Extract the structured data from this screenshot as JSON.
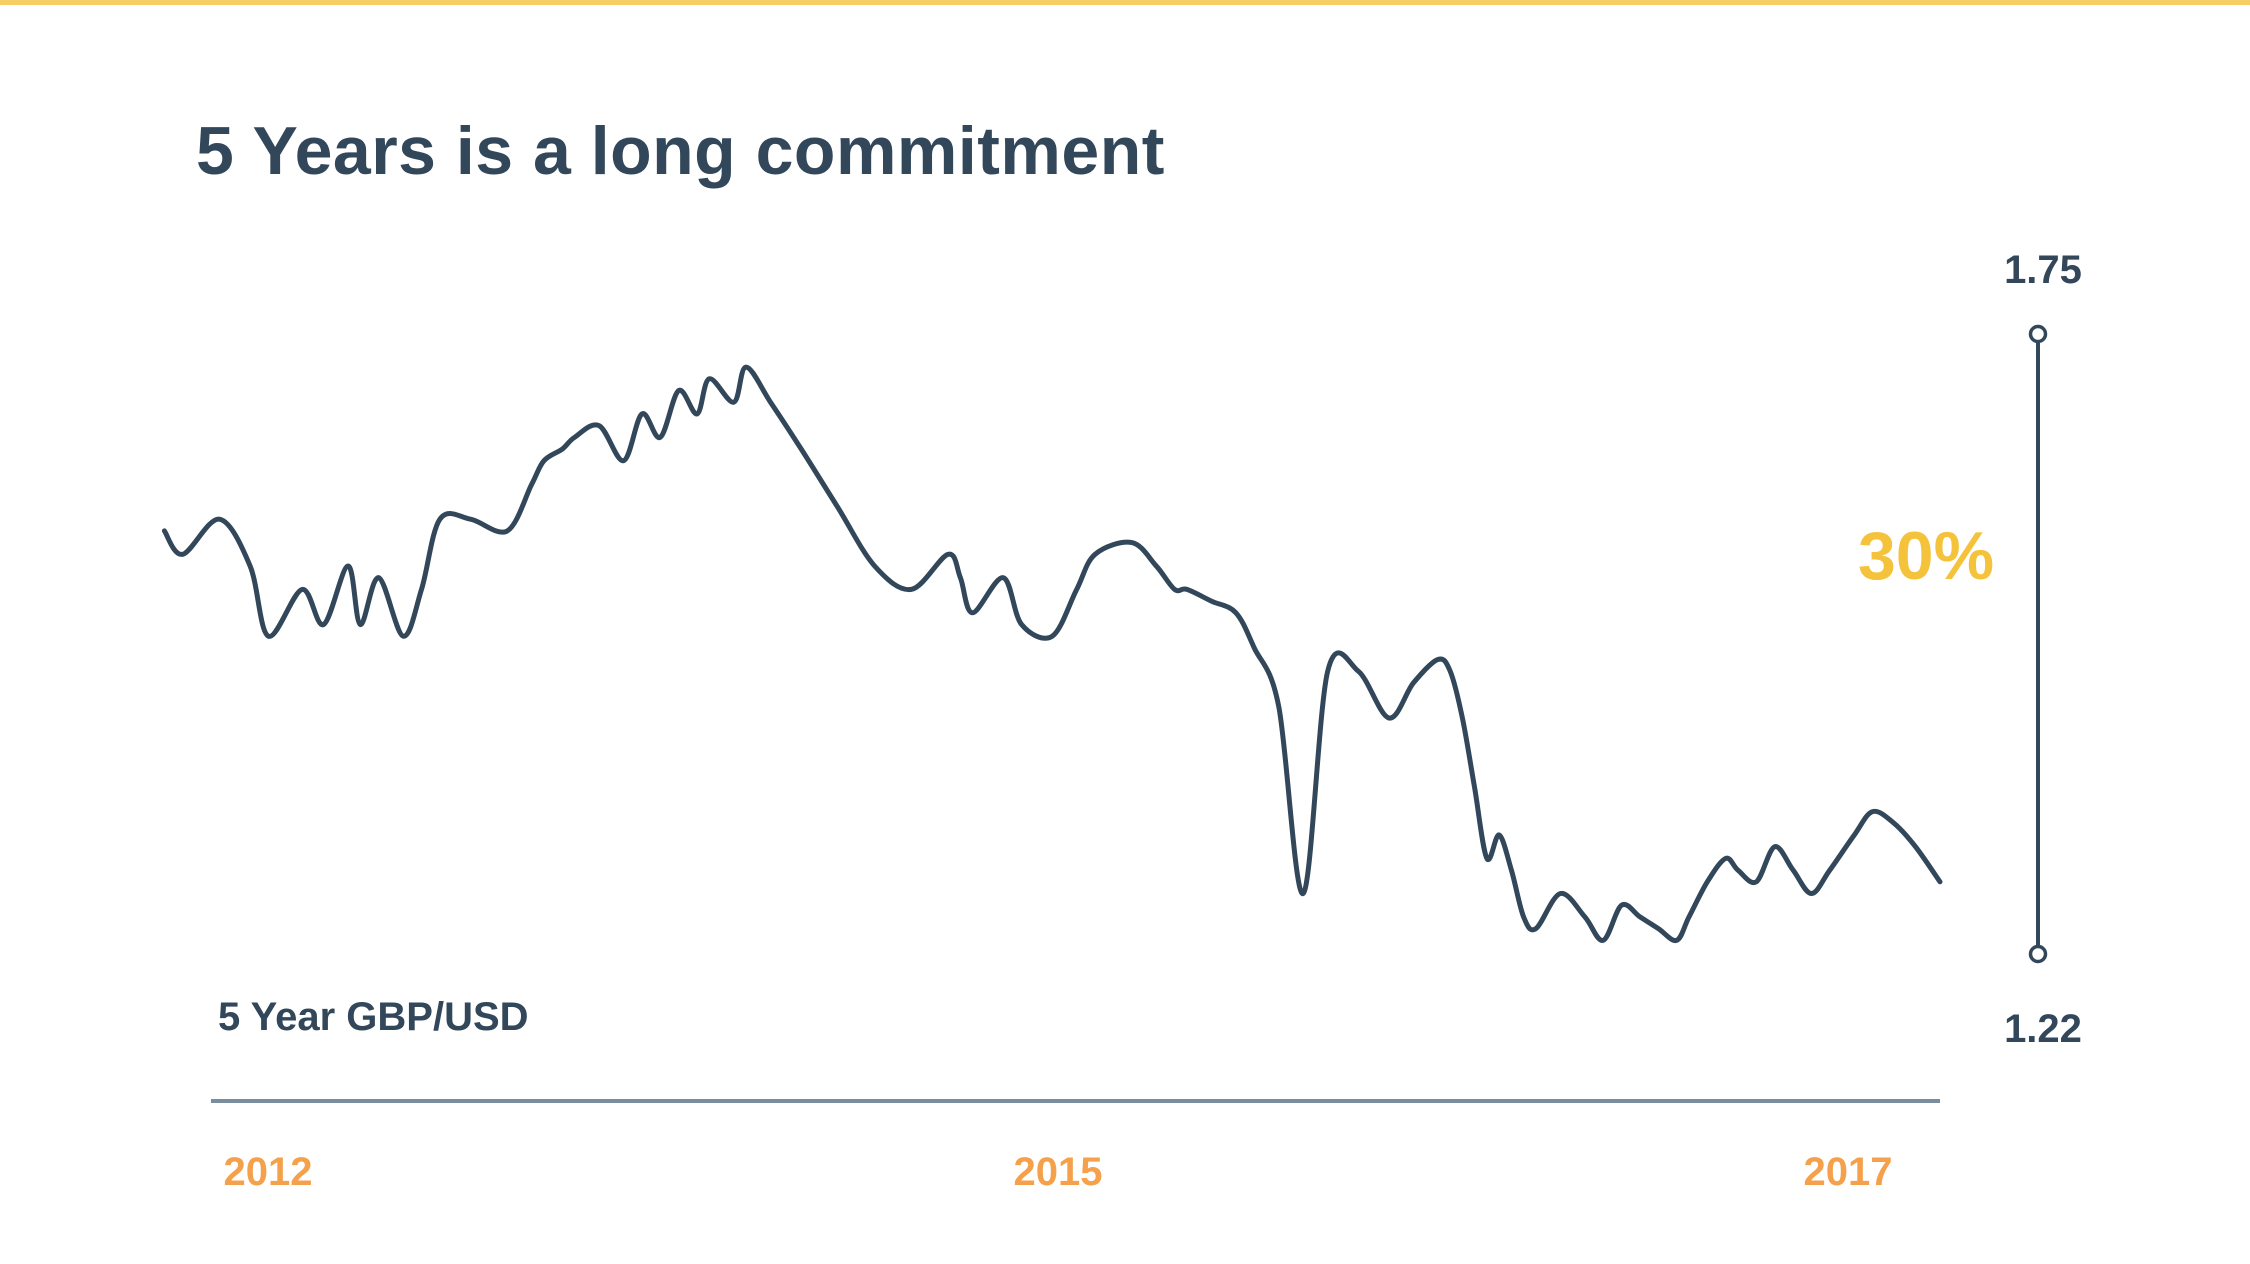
{
  "title": "5 Years is a long commitment",
  "colors": {
    "accent_bar": "#f5cf63",
    "line": "#33475b",
    "axis": "#7a8d9c",
    "year_label": "#f5a04a",
    "change_label": "#f5c33b",
    "text": "#33475b"
  },
  "chart_data": {
    "type": "line",
    "title": "5 Years is a long commitment",
    "series_label": "5 Year GBP/USD",
    "xlabel": "",
    "ylabel": "",
    "x_ticks": [
      "2012",
      "2015",
      "2017"
    ],
    "x_range": [
      2012.0,
      2017.7
    ],
    "y_range": [
      1.22,
      1.75
    ],
    "range_top_label": "1.75",
    "range_bottom_label": "1.22",
    "change_label": "30%",
    "grid": false,
    "series": [
      {
        "x": [
          2011.9,
          2011.96,
          2012.08,
          2012.18,
          2012.24,
          2012.35,
          2012.42,
          2012.5,
          2012.54,
          2012.6,
          2012.68,
          2012.74,
          2012.8,
          2012.9,
          2013.02,
          2013.1,
          2013.14,
          2013.2,
          2013.24,
          2013.32,
          2013.4,
          2013.46,
          2013.52,
          2013.58,
          2013.64,
          2013.68,
          2013.76,
          2013.8,
          2013.88,
          2013.98,
          2014.1,
          2014.22,
          2014.34,
          2014.46,
          2014.5,
          2014.54,
          2014.64,
          2014.7,
          2014.8,
          2014.88,
          2014.94,
          2015.06,
          2015.14,
          2015.2,
          2015.24,
          2015.32,
          2015.4,
          2015.46,
          2015.54,
          2015.62,
          2015.7,
          2015.8,
          2015.9,
          2015.98,
          2016.06,
          2016.1,
          2016.14,
          2016.18,
          2016.22,
          2016.26,
          2016.3,
          2016.34,
          2016.38,
          2016.46,
          2016.54,
          2016.6,
          2016.66,
          2016.72,
          2016.78,
          2016.84,
          2016.88,
          2016.94,
          2017.0,
          2017.04,
          2017.1,
          2017.16,
          2017.22,
          2017.28,
          2017.34,
          2017.42,
          2017.48,
          2017.55,
          2017.62,
          2017.7
        ],
        "y": [
          1.58,
          1.56,
          1.59,
          1.55,
          1.49,
          1.53,
          1.5,
          1.55,
          1.5,
          1.54,
          1.49,
          1.53,
          1.59,
          1.59,
          1.58,
          1.62,
          1.64,
          1.65,
          1.66,
          1.67,
          1.64,
          1.68,
          1.66,
          1.7,
          1.68,
          1.71,
          1.69,
          1.72,
          1.69,
          1.65,
          1.6,
          1.55,
          1.53,
          1.56,
          1.54,
          1.51,
          1.54,
          1.5,
          1.49,
          1.53,
          1.56,
          1.57,
          1.55,
          1.53,
          1.53,
          1.52,
          1.51,
          1.48,
          1.43,
          1.27,
          1.46,
          1.46,
          1.42,
          1.45,
          1.47,
          1.46,
          1.42,
          1.36,
          1.3,
          1.32,
          1.29,
          1.25,
          1.24,
          1.27,
          1.25,
          1.23,
          1.26,
          1.25,
          1.24,
          1.23,
          1.25,
          1.28,
          1.3,
          1.29,
          1.28,
          1.31,
          1.29,
          1.27,
          1.29,
          1.32,
          1.34,
          1.33,
          1.31,
          1.28
        ]
      }
    ]
  }
}
